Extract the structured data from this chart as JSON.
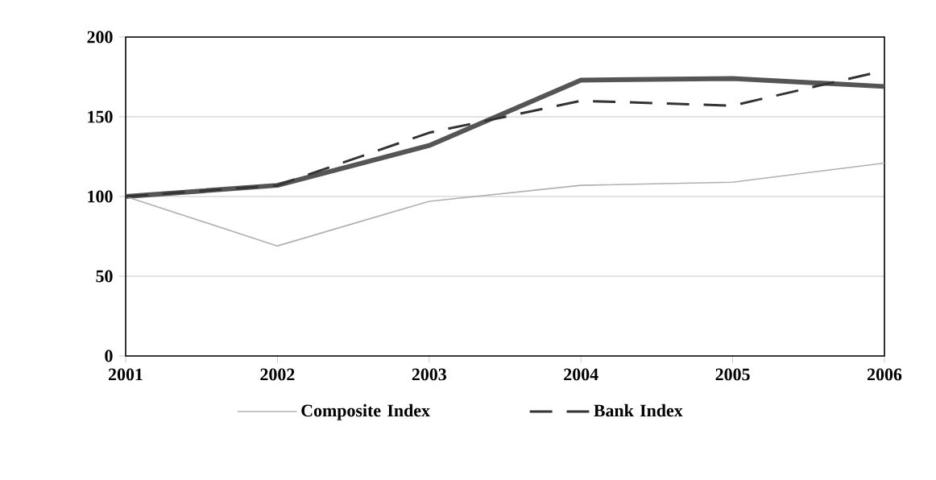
{
  "chart_data": {
    "type": "line",
    "categories": [
      "2001",
      "2002",
      "2003",
      "2004",
      "2005",
      "2006"
    ],
    "series": [
      {
        "color": "#555555",
        "values": [
          100,
          107,
          132,
          173,
          174,
          169
        ]
      },
      {
        "name": "Composite Index",
        "color": "#b0b0b0",
        "values": [
          100,
          69,
          97,
          107,
          109,
          121
        ]
      },
      {
        "name": "Bank Index",
        "color": "#333333",
        "values": [
          100,
          107,
          140,
          160,
          157,
          179
        ],
        "line_style": "dashed"
      }
    ],
    "ylim": [
      0,
      200
    ],
    "yticks": [
      0,
      50,
      100,
      150,
      200
    ],
    "grid": "y",
    "legend": "bottom"
  }
}
